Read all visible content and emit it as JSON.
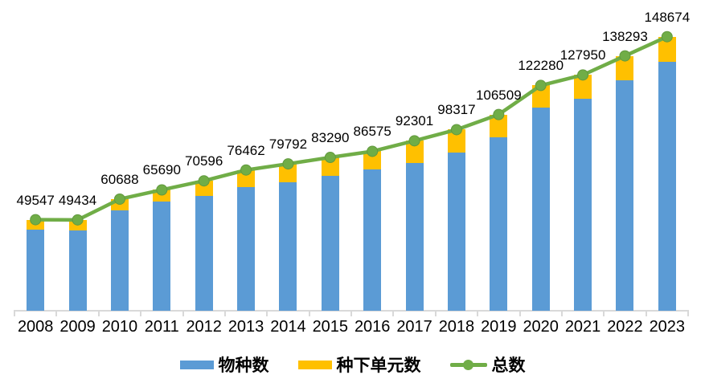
{
  "chart_data": {
    "type": "bar",
    "subtype": "stacked-bar-with-total-line",
    "title": "",
    "xlabel": "",
    "ylabel": "",
    "categories": [
      "2008",
      "2009",
      "2010",
      "2011",
      "2012",
      "2013",
      "2014",
      "2015",
      "2016",
      "2017",
      "2018",
      "2019",
      "2020",
      "2021",
      "2022",
      "2023"
    ],
    "series": [
      {
        "name": "物种数",
        "type": "bar",
        "color": "#5B9BD5",
        "estimated_from_pixels": true,
        "values": [
          44100,
          43650,
          54450,
          59400,
          62350,
          67000,
          69650,
          73150,
          76650,
          80350,
          86050,
          94200,
          110231,
          115064,
          125034,
          135061
        ]
      },
      {
        "name": "种下单元数",
        "type": "bar",
        "color": "#FFC000",
        "estimated_from_pixels": true,
        "values": [
          5447,
          5784,
          6238,
          6290,
          8246,
          9462,
          10142,
          10140,
          9925,
          11951,
          12267,
          12309,
          12049,
          12886,
          13259,
          13613
        ]
      },
      {
        "name": "总数",
        "type": "line",
        "color": "#70AD47",
        "marker": "circle",
        "values": [
          49547,
          49434,
          60688,
          65690,
          70596,
          76462,
          79792,
          83290,
          86575,
          92301,
          98317,
          106509,
          122280,
          127950,
          138293,
          148674
        ]
      }
    ],
    "data_labels_series": "总数",
    "data_labels": [
      "49547",
      "49434",
      "60688",
      "65690",
      "70596",
      "76462",
      "79792",
      "83290",
      "86575",
      "92301",
      "98317",
      "106509",
      "122280",
      "127950",
      "138293",
      "148674"
    ],
    "ylim": [
      0,
      160000
    ],
    "grid": false,
    "y_axis_shown": false,
    "legend_position": "bottom",
    "axis_color": "#D9D9D9",
    "text_color": "#000000"
  }
}
